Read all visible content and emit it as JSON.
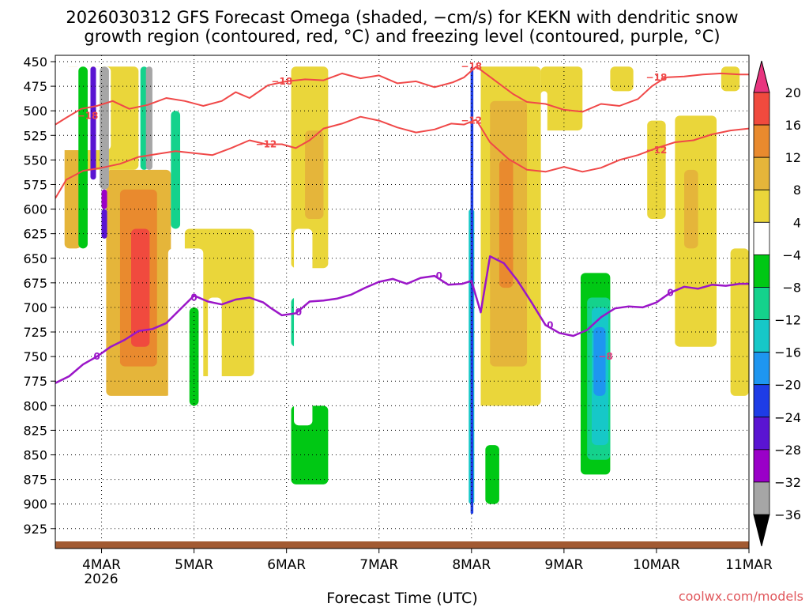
{
  "chart_data": {
    "type": "heatmap",
    "title_line1": "2026030312 GFS Forecast Omega (shaded, −cm/s) for KEKN with dendritic snow",
    "title_line2": "growth region (contoured, red, °C) and freezing level (contoured, purple, °C)",
    "xlabel": "Forecast Time (UTC)",
    "ylabel": "Pressure (hPa)",
    "x_ticks": [
      "4MAR",
      "5MAR",
      "6MAR",
      "7MAR",
      "8MAR",
      "9MAR",
      "10MAR",
      "11MAR"
    ],
    "x_year": "2026",
    "xlim_days": [
      3.5,
      11.0
    ],
    "y_ticks": [
      450,
      475,
      500,
      525,
      550,
      575,
      600,
      625,
      650,
      675,
      700,
      725,
      750,
      775,
      800,
      825,
      850,
      875,
      900,
      925
    ],
    "ylim": [
      450,
      930
    ],
    "colorbar_labels": [
      "20",
      "16",
      "12",
      "8",
      "4",
      "−4",
      "−8",
      "−12",
      "−16",
      "−20",
      "−24",
      "−28",
      "−32",
      "−36"
    ],
    "colorbar_levels": [
      -36,
      -32,
      -28,
      -24,
      -20,
      -16,
      -12,
      -8,
      -4,
      4,
      8,
      12,
      16,
      20
    ],
    "colorbar_colors": [
      "#000000",
      "#a6a6a6",
      "#9a00c8",
      "#5a14d2",
      "#1e3ce6",
      "#1e96f0",
      "#16c8c8",
      "#14d28c",
      "#00c814",
      "#ffffff",
      "#ead63a",
      "#e5b53a",
      "#e98a2e",
      "#f04a3e",
      "#e8357f"
    ],
    "colors": {
      "red_contour": "#f04848",
      "purple_contour": "#9b16c8",
      "terrain": "#a25a32"
    },
    "contour_labels": {
      "red_m18": "−18",
      "red_m12": "−12",
      "purple_0": "0",
      "omega_m8": "−8"
    },
    "red_contour_m18": {
      "x": [
        3.5,
        3.62,
        3.78,
        3.95,
        4.12,
        4.3,
        4.5,
        4.7,
        4.9,
        5.1,
        5.3,
        5.45,
        5.6,
        5.8,
        6.0,
        6.2,
        6.4,
        6.6,
        6.8,
        7.0,
        7.2,
        7.4,
        7.6,
        7.8,
        7.92,
        8.05,
        8.25,
        8.45,
        8.6,
        8.8,
        9.0,
        9.2,
        9.4,
        9.6,
        9.8,
        9.95,
        10.1,
        10.3,
        10.5,
        10.7,
        10.9,
        11.0
      ],
      "y": [
        514,
        507,
        498,
        495,
        490,
        498,
        494,
        487,
        490,
        495,
        490,
        481,
        487,
        474,
        470,
        468,
        469,
        462,
        467,
        464,
        472,
        470,
        476,
        471,
        466,
        455,
        469,
        483,
        491,
        493,
        499,
        501,
        493,
        495,
        488,
        475,
        466,
        465,
        463,
        462,
        463,
        463
      ]
    },
    "red_contour_m12": {
      "x": [
        3.5,
        3.62,
        3.8,
        4.0,
        4.2,
        4.4,
        4.6,
        4.8,
        5.0,
        5.2,
        5.4,
        5.6,
        5.78,
        5.95,
        6.1,
        6.25,
        6.4,
        6.6,
        6.8,
        7.0,
        7.2,
        7.4,
        7.6,
        7.78,
        7.92,
        8.05,
        8.2,
        8.4,
        8.6,
        8.8,
        9.0,
        9.2,
        9.4,
        9.6,
        9.8,
        10.0,
        10.2,
        10.4,
        10.6,
        10.8,
        11.0
      ],
      "y": [
        589,
        570,
        561,
        558,
        554,
        547,
        544,
        541,
        543,
        545,
        538,
        530,
        534,
        534,
        538,
        530,
        518,
        513,
        506,
        510,
        517,
        522,
        519,
        513,
        514,
        509,
        532,
        549,
        560,
        562,
        557,
        562,
        558,
        550,
        545,
        538,
        532,
        530,
        524,
        520,
        518
      ]
    },
    "purple_contour_0": {
      "x": [
        3.5,
        3.65,
        3.8,
        3.95,
        4.1,
        4.25,
        4.4,
        4.55,
        4.7,
        4.85,
        5.0,
        5.15,
        5.3,
        5.45,
        5.6,
        5.75,
        5.82,
        5.95,
        6.1,
        6.25,
        6.4,
        6.55,
        6.7,
        6.85,
        7.0,
        7.15,
        7.3,
        7.45,
        7.6,
        7.75,
        7.9,
        8.0,
        8.1,
        8.2,
        8.35,
        8.5,
        8.65,
        8.8,
        8.95,
        9.1,
        9.25,
        9.4,
        9.55,
        9.7,
        9.85,
        10.0,
        10.15,
        10.3,
        10.45,
        10.6,
        10.75,
        10.9,
        11.0
      ],
      "y": [
        777,
        770,
        758,
        750,
        740,
        733,
        724,
        722,
        716,
        702,
        688,
        694,
        697,
        692,
        690,
        695,
        700,
        708,
        706,
        694,
        693,
        691,
        687,
        680,
        674,
        671,
        676,
        670,
        668,
        677,
        676,
        673,
        705,
        648,
        655,
        673,
        695,
        718,
        726,
        729,
        723,
        710,
        701,
        699,
        700,
        695,
        685,
        679,
        681,
        677,
        678,
        676,
        676
      ]
    },
    "omega_regions": [
      {
        "lvl": 8,
        "x0": 3.6,
        "x1": 3.78,
        "p0": 455,
        "p1": 640
      },
      {
        "lvl": 8,
        "x0": 4.05,
        "x1": 4.75,
        "p0": 560,
        "p1": 790
      },
      {
        "lvl": 12,
        "x0": 4.2,
        "x1": 4.6,
        "p0": 580,
        "p1": 760
      },
      {
        "lvl": 16,
        "x0": 4.32,
        "x1": 4.52,
        "p0": 620,
        "p1": 740
      },
      {
        "lvl": 4,
        "x0": 3.82,
        "x1": 4.4,
        "p0": 455,
        "p1": 560
      },
      {
        "lvl": 4,
        "x0": 4.9,
        "x1": 5.65,
        "p0": 620,
        "p1": 770
      },
      {
        "lvl": 4,
        "x0": 6.05,
        "x1": 6.45,
        "p0": 455,
        "p1": 660
      },
      {
        "lvl": 8,
        "x0": 6.2,
        "x1": 6.4,
        "p0": 520,
        "p1": 610
      },
      {
        "lvl": 4,
        "x0": 8.05,
        "x1": 8.75,
        "p0": 455,
        "p1": 800
      },
      {
        "lvl": 8,
        "x0": 8.2,
        "x1": 8.6,
        "p0": 490,
        "p1": 760
      },
      {
        "lvl": 12,
        "x0": 8.3,
        "x1": 8.45,
        "p0": 550,
        "p1": 680
      },
      {
        "lvl": 4,
        "x0": 8.75,
        "x1": 9.2,
        "p0": 455,
        "p1": 520
      },
      {
        "lvl": 4,
        "x0": 9.5,
        "x1": 9.75,
        "p0": 455,
        "p1": 480
      },
      {
        "lvl": 4,
        "x0": 9.9,
        "x1": 10.1,
        "p0": 510,
        "p1": 610
      },
      {
        "lvl": 4,
        "x0": 10.2,
        "x1": 10.65,
        "p0": 505,
        "p1": 740
      },
      {
        "lvl": 8,
        "x0": 10.3,
        "x1": 10.45,
        "p0": 560,
        "p1": 640
      },
      {
        "lvl": 4,
        "x0": 10.7,
        "x1": 10.9,
        "p0": 455,
        "p1": 480
      },
      {
        "lvl": 4,
        "x0": 10.8,
        "x1": 11.0,
        "p0": 640,
        "p1": 790
      },
      {
        "lvl": -4,
        "x0": 3.55,
        "x1": 4.1,
        "p0": 455,
        "p1": 540
      },
      {
        "lvl": -8,
        "x0": 3.75,
        "x1": 3.85,
        "p0": 455,
        "p1": 640
      },
      {
        "lvl": -28,
        "x0": 3.88,
        "x1": 3.94,
        "p0": 455,
        "p1": 570
      },
      {
        "lvl": -36,
        "x0": 3.98,
        "x1": 4.08,
        "p0": 455,
        "p1": 580
      },
      {
        "lvl": -32,
        "x0": 4.0,
        "x1": 4.06,
        "p0": 580,
        "p1": 600
      },
      {
        "lvl": -28,
        "x0": 4.0,
        "x1": 4.06,
        "p0": 600,
        "p1": 630
      },
      {
        "lvl": -12,
        "x0": 4.42,
        "x1": 4.5,
        "p0": 455,
        "p1": 560
      },
      {
        "lvl": -36,
        "x0": 4.48,
        "x1": 4.55,
        "p0": 455,
        "p1": 560
      },
      {
        "lvl": -12,
        "x0": 4.75,
        "x1": 4.85,
        "p0": 500,
        "p1": 620
      },
      {
        "lvl": -4,
        "x0": 4.72,
        "x1": 5.1,
        "p0": 640,
        "p1": 880
      },
      {
        "lvl": -4,
        "x0": 5.15,
        "x1": 5.3,
        "p0": 690,
        "p1": 880
      },
      {
        "lvl": -8,
        "x0": 4.95,
        "x1": 5.05,
        "p0": 700,
        "p1": 800
      },
      {
        "lvl": -4,
        "x0": 5.82,
        "x1": 5.92,
        "p0": 455,
        "p1": 620
      },
      {
        "lvl": -4,
        "x0": 5.78,
        "x1": 6.05,
        "p0": 620,
        "p1": 760
      },
      {
        "lvl": -4,
        "x0": 5.9,
        "x1": 6.55,
        "p0": 770,
        "p1": 905
      },
      {
        "lvl": -8,
        "x0": 6.05,
        "x1": 6.45,
        "p0": 800,
        "p1": 880
      },
      {
        "lvl": -12,
        "x0": 6.05,
        "x1": 6.18,
        "p0": 690,
        "p1": 740
      },
      {
        "lvl": -4,
        "x0": 6.08,
        "x1": 6.28,
        "p0": 620,
        "p1": 820
      },
      {
        "lvl": -4,
        "x0": 7.25,
        "x1": 7.3,
        "p0": 680,
        "p1": 720
      },
      {
        "lvl": -4,
        "x0": 7.5,
        "x1": 7.6,
        "p0": 560,
        "p1": 700
      },
      {
        "lvl": -4,
        "x0": 7.62,
        "x1": 7.68,
        "p0": 800,
        "p1": 880
      },
      {
        "lvl": -4,
        "x0": 7.95,
        "x1": 8.1,
        "p0": 455,
        "p1": 920
      },
      {
        "lvl": -16,
        "x0": 7.97,
        "x1": 8.03,
        "p0": 600,
        "p1": 900
      },
      {
        "lvl": -24,
        "x0": 7.99,
        "x1": 8.02,
        "p0": 455,
        "p1": 910
      },
      {
        "lvl": -4,
        "x0": 8.12,
        "x1": 8.45,
        "p0": 820,
        "p1": 920
      },
      {
        "lvl": -8,
        "x0": 8.15,
        "x1": 8.3,
        "p0": 840,
        "p1": 900
      },
      {
        "lvl": -4,
        "x0": 9.1,
        "x1": 9.5,
        "p0": 630,
        "p1": 890
      },
      {
        "lvl": -8,
        "x0": 9.18,
        "x1": 9.5,
        "p0": 665,
        "p1": 870
      },
      {
        "lvl": -12,
        "x0": 9.25,
        "x1": 9.5,
        "p0": 690,
        "p1": 855
      },
      {
        "lvl": -16,
        "x0": 9.3,
        "x1": 9.48,
        "p0": 700,
        "p1": 840
      },
      {
        "lvl": -20,
        "x0": 9.32,
        "x1": 9.45,
        "p0": 720,
        "p1": 790
      },
      {
        "lvl": -4,
        "x0": 10.0,
        "x1": 10.35,
        "p0": 820,
        "p1": 865
      },
      {
        "lvl": -4,
        "x0": 10.15,
        "x1": 10.3,
        "p0": 770,
        "p1": 825
      },
      {
        "lvl": -4,
        "x0": 10.65,
        "x1": 10.8,
        "p0": 860,
        "p1": 885
      },
      {
        "lvl": -4,
        "x0": 10.9,
        "x1": 11.0,
        "p0": 455,
        "p1": 485
      },
      {
        "lvl": -4,
        "x0": 10.98,
        "x1": 11.0,
        "p0": 490,
        "p1": 520
      },
      {
        "lvl": -4,
        "x0": 10.7,
        "x1": 10.75,
        "p0": 480,
        "p1": 490
      },
      {
        "lvl": -4,
        "x0": 8.75,
        "x1": 8.82,
        "p0": 480,
        "p1": 530
      }
    ]
  },
  "credit": "coolwx.com/models"
}
